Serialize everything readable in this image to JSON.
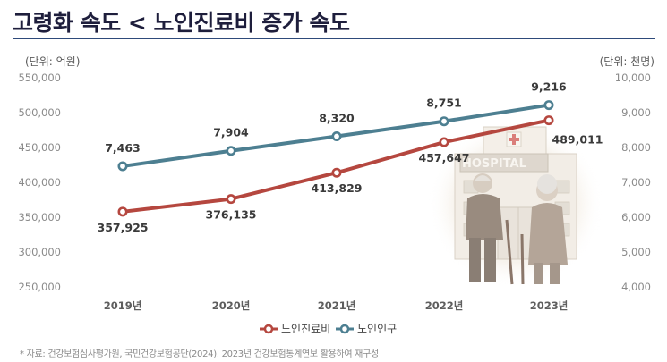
{
  "page": {
    "title": "고령화 속도 < 노인진료비 증가 속도",
    "source_note": "* 자료: 건강보험심사평가원, 국민건강보험공단(2024). 2023년 건강보험통계연보 활용하여 재구성"
  },
  "illustration": {
    "sign_text": "HOSPITAL"
  },
  "chart_data": {
    "type": "line",
    "categories": [
      "2019년",
      "2020년",
      "2021년",
      "2022년",
      "2023년"
    ],
    "left_axis": {
      "unit": "(단위: 억원)",
      "range": [
        250000,
        550000
      ],
      "ticks": [
        "250,000",
        "300,000",
        "350,000",
        "400,000",
        "450,000",
        "500,000",
        "550,000"
      ]
    },
    "right_axis": {
      "unit": "(단위: 천명)",
      "range": [
        4000,
        10000
      ],
      "ticks": [
        "4,000",
        "5,000",
        "6,000",
        "7,000",
        "8,000",
        "9,000",
        "10,000"
      ]
    },
    "series": [
      {
        "name": "노인진료비",
        "axis": "left",
        "color": "#b5473f",
        "values": [
          357925,
          376135,
          413829,
          457647,
          489011
        ],
        "labels": [
          "357,925",
          "376,135",
          "413,829",
          "457,647",
          "489,011"
        ]
      },
      {
        "name": "노인인구",
        "axis": "right",
        "color": "#4d7f91",
        "values": [
          7463,
          7904,
          8320,
          8751,
          9216
        ],
        "labels": [
          "7,463",
          "7,904",
          "8,320",
          "8,751",
          "9,216"
        ]
      }
    ],
    "grid": false,
    "legend_position": "bottom-right"
  }
}
